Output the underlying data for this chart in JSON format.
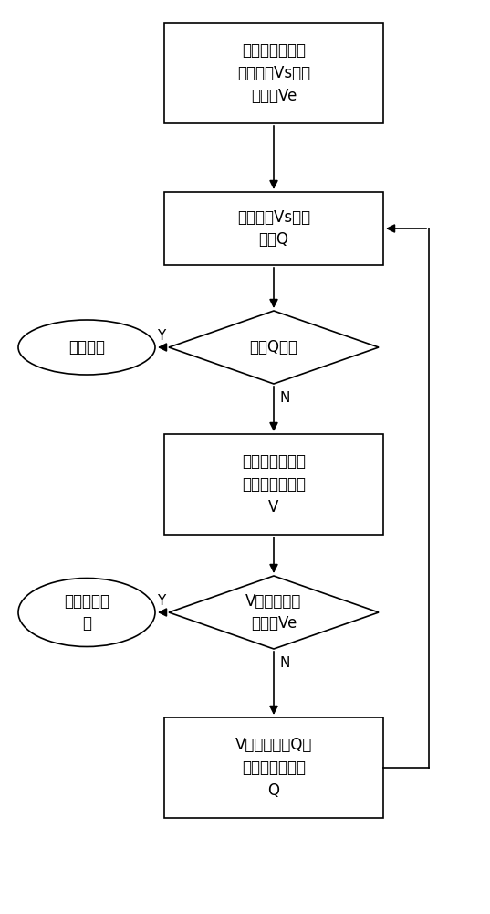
{
  "bg_color": "#ffffff",
  "edge_color": "#000000",
  "text_color": "#000000",
  "box1_text": "初始化图，输入\n起始站点Vs和终\n止站点Ve",
  "box2_text": "起始站点Vs进入\n队列Q",
  "dia1_text": "队列Q为空",
  "oval1_text": "搜索结束",
  "box3_text": "取队列头的相邻\n的所有中继站点\nV",
  "dia2_text": "V中是否有终\n止站点Ve",
  "oval2_text": "记录可达路\n由",
  "box4_text": "V中不在队列Q中\n的站点进入队列\nQ",
  "label_Y": "Y",
  "label_N": "N",
  "figsize": [
    5.37,
    10.0
  ],
  "dpi": 100
}
